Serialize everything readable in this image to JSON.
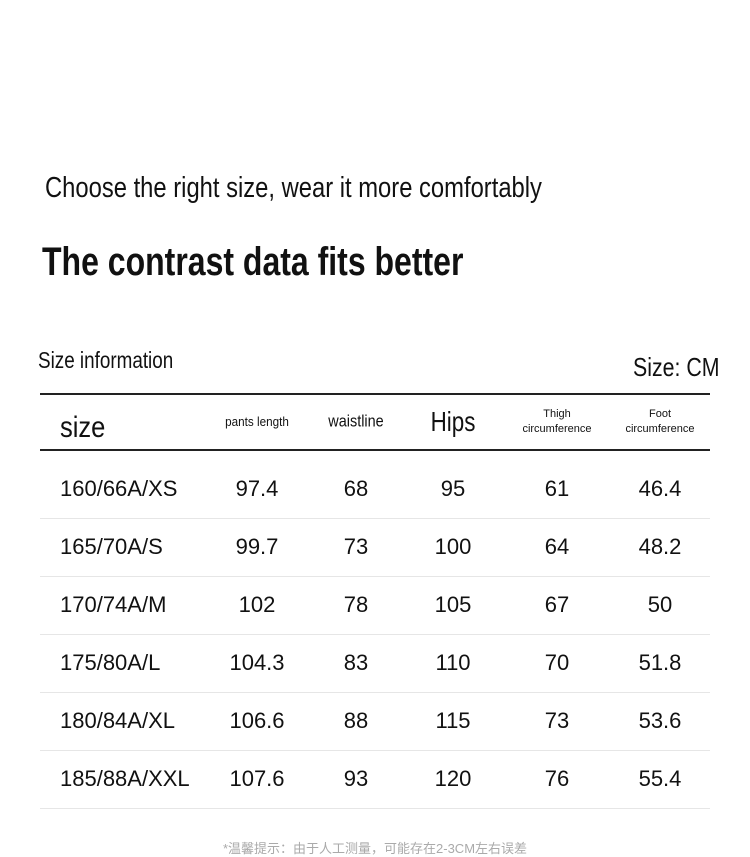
{
  "header": {
    "title": "Choose the right size, wear it more comfortably",
    "subtitle": "The contrast data fits better"
  },
  "table": {
    "caption": "Size information",
    "unit": "Size: CM",
    "columns": [
      "size",
      "pants length",
      "waistline",
      "Hips",
      "Thigh circumference",
      "Foot circumference"
    ],
    "rows": [
      [
        "160/66A/XS",
        "97.4",
        "68",
        "95",
        "61",
        "46.4"
      ],
      [
        "165/70A/S",
        "99.7",
        "73",
        "100",
        "64",
        "48.2"
      ],
      [
        "170/74A/M",
        "102",
        "78",
        "105",
        "67",
        "50"
      ],
      [
        "175/80A/L",
        "104.3",
        "83",
        "110",
        "70",
        "51.8"
      ],
      [
        "180/84A/XL",
        "106.6",
        "88",
        "115",
        "73",
        "53.6"
      ],
      [
        "185/88A/XXL",
        "107.6",
        "93",
        "120",
        "76",
        "55.4"
      ]
    ]
  },
  "footnote": "*温馨提示：由于人工测量，可能存在2-3CM左右误差"
}
